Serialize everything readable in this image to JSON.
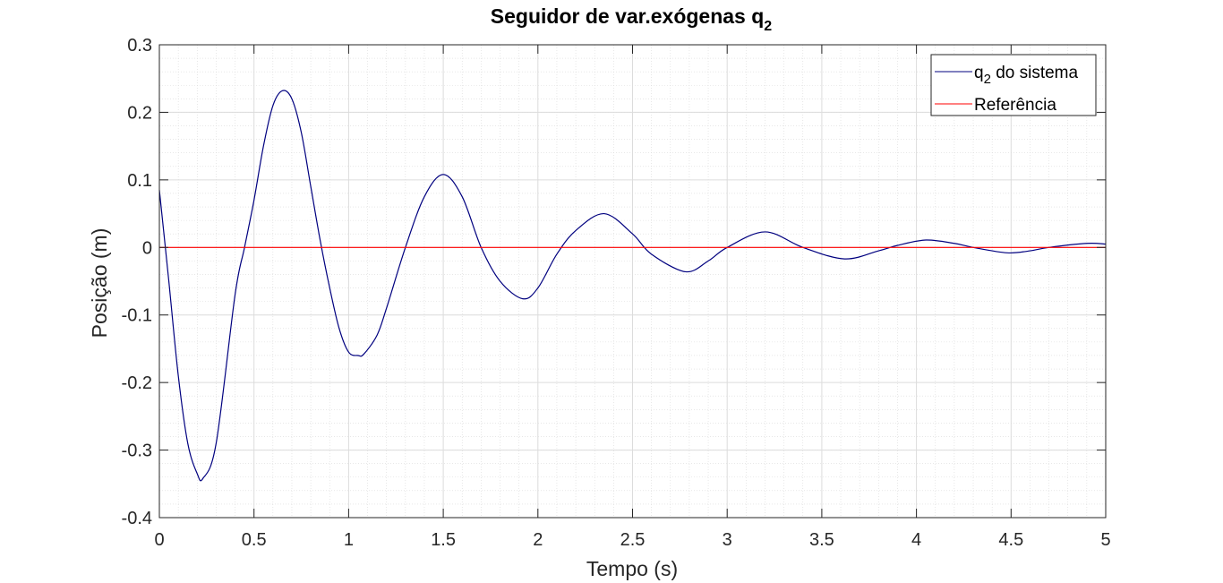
{
  "chart_data": {
    "type": "line",
    "title": "Seguidor de var.exógenas q",
    "title_subscript": "2",
    "xlabel": "Tempo (s)",
    "ylabel": "Posição (m)",
    "xlim": [
      0,
      5
    ],
    "ylim": [
      -0.4,
      0.3
    ],
    "xticks": [
      0,
      0.5,
      1,
      1.5,
      2,
      2.5,
      3,
      3.5,
      4,
      4.5,
      5
    ],
    "xtick_labels": [
      "0",
      "0.5",
      "1",
      "1.5",
      "2",
      "2.5",
      "3",
      "3.5",
      "4",
      "4.5",
      "5"
    ],
    "yticks": [
      -0.4,
      -0.3,
      -0.2,
      -0.1,
      0,
      0.1,
      0.2,
      0.3
    ],
    "ytick_labels": [
      "-0.4",
      "-0.3",
      "-0.2",
      "-0.1",
      "0",
      "0.1",
      "0.2",
      "0.3"
    ],
    "grid": true,
    "minor_grid": true,
    "legend_position": "top-right",
    "series": [
      {
        "name": "q",
        "name_subscript": "2",
        "name_suffix": " do sistema",
        "color": "#00007f",
        "x": [
          0,
          0.05,
          0.1,
          0.15,
          0.2,
          0.23,
          0.3,
          0.4,
          0.45,
          0.5,
          0.55,
          0.6,
          0.65,
          0.7,
          0.75,
          0.8,
          0.85,
          0.9,
          0.95,
          1.0,
          1.05,
          1.08,
          1.15,
          1.2,
          1.3,
          1.4,
          1.5,
          1.6,
          1.7,
          1.8,
          1.92,
          2.0,
          2.1,
          2.2,
          2.35,
          2.5,
          2.6,
          2.78,
          2.9,
          3.0,
          3.2,
          3.4,
          3.62,
          3.8,
          3.9,
          4.05,
          4.2,
          4.3,
          4.48,
          4.6,
          4.7,
          4.9,
          5.0
        ],
        "y": [
          0.085,
          -0.05,
          -0.19,
          -0.29,
          -0.335,
          -0.342,
          -0.29,
          -0.07,
          0.0,
          0.07,
          0.15,
          0.21,
          0.232,
          0.22,
          0.17,
          0.09,
          0.01,
          -0.06,
          -0.12,
          -0.155,
          -0.16,
          -0.158,
          -0.13,
          -0.09,
          0.0,
          0.075,
          0.108,
          0.075,
          0.0,
          -0.05,
          -0.076,
          -0.06,
          -0.01,
          0.025,
          0.05,
          0.02,
          -0.01,
          -0.036,
          -0.02,
          0.0,
          0.023,
          0.0,
          -0.017,
          -0.005,
          0.003,
          0.011,
          0.006,
          0.0,
          -0.008,
          -0.005,
          0.0,
          0.006,
          0.005
        ]
      },
      {
        "name": "Referência",
        "color": "#ff0000",
        "x": [
          0,
          5
        ],
        "y": [
          0,
          0
        ]
      }
    ]
  }
}
